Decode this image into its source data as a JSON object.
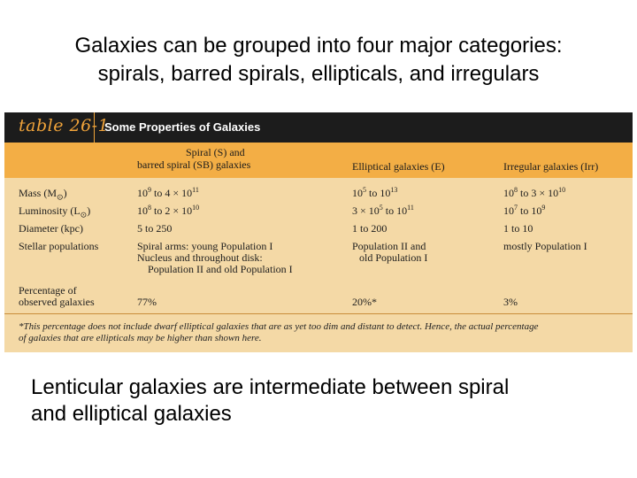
{
  "title": {
    "line1": "Galaxies can be grouped into four major categories:",
    "line2": "spirals, barred spirals, ellipticals, and irregulars"
  },
  "table": {
    "number": "table 26-1",
    "caption": "Some Properties of Galaxies",
    "columns": {
      "spiral_line1": "Spiral (S) and",
      "spiral_line2": "barred spiral (SB) galaxies",
      "elliptical": "Elliptical galaxies (E)",
      "irregular": "Irregular galaxies (Irr)"
    },
    "rows": {
      "mass": {
        "label": "Mass (M",
        "label_sun": "⊙",
        "label_end": ")",
        "spiral": {
          "a": "10",
          "a_exp": "9",
          "b": " to 4 × 10",
          "b_exp": "11"
        },
        "elliptical": {
          "a": "10",
          "a_exp": "5",
          "b": " to 10",
          "b_exp": "13"
        },
        "irregular": {
          "a": "10",
          "a_exp": "8",
          "b": " to 3 × 10",
          "b_exp": "10"
        }
      },
      "luminosity": {
        "label": "Luminosity (L",
        "label_sun": "⊙",
        "label_end": ")",
        "spiral": {
          "a": "10",
          "a_exp": "8",
          "b": " to 2 × 10",
          "b_exp": "10"
        },
        "elliptical": {
          "a": "3 × 10",
          "a_exp": "5",
          "b": " to 10",
          "b_exp": "11"
        },
        "irregular": {
          "a": "10",
          "a_exp": "7",
          "b": " to 10",
          "b_exp": "9"
        }
      },
      "diameter": {
        "label": "Diameter (kpc)",
        "spiral": "5 to 250",
        "elliptical": "1 to 200",
        "irregular": "1 to 10"
      },
      "stellar": {
        "label": "Stellar populations",
        "spiral": [
          "Spiral arms: young Population I",
          "Nucleus and throughout disk:",
          "Population II and old Population I"
        ],
        "elliptical": [
          "Population II and",
          "old Population I"
        ],
        "irregular": "mostly Population I"
      },
      "percentage": {
        "label_line1": "Percentage of",
        "label_line2": "observed galaxies",
        "spiral": "77%",
        "elliptical": "20%*",
        "irregular": "3%"
      }
    },
    "footnote": {
      "line1": "*This percentage does not include dwarf elliptical galaxies that are as yet too dim and distant to detect. Hence, the actual percentage",
      "line2": "of galaxies that are ellipticals may be higher than shown here."
    }
  },
  "caption": {
    "line1": "Lenticular galaxies are intermediate between spiral",
    "line2": "and elliptical galaxies"
  }
}
